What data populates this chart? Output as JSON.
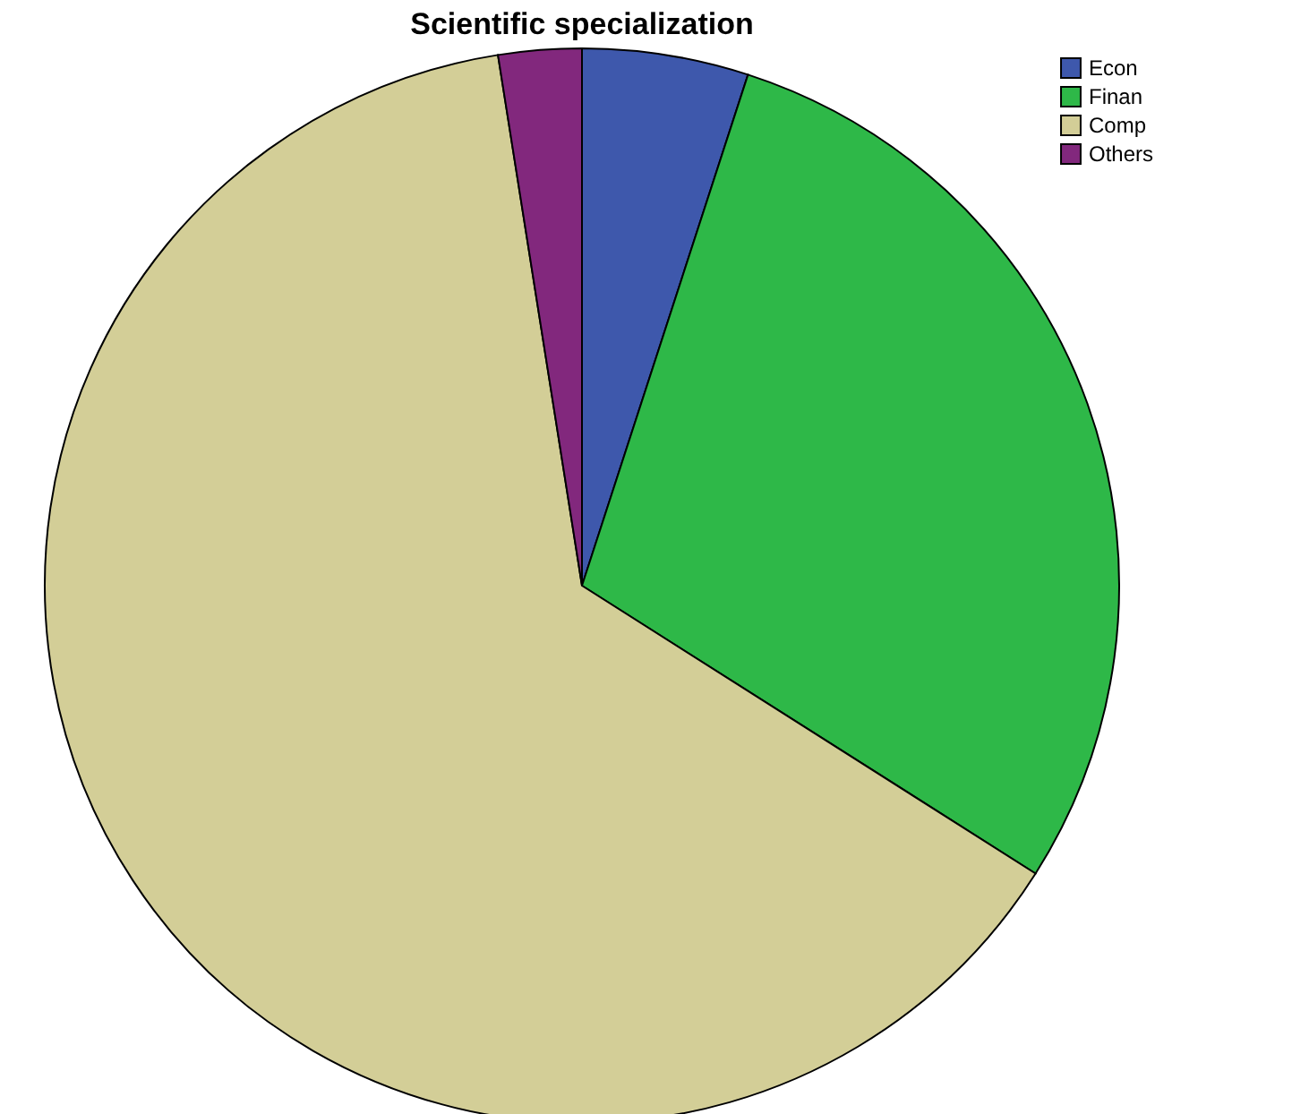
{
  "chart_data": {
    "type": "pie",
    "title": "Scientific specialization",
    "categories": [
      "Econ",
      "Finan",
      "Comp",
      "Others"
    ],
    "values": [
      5,
      29,
      63.5,
      2.5
    ],
    "colors": [
      "#3e58ac",
      "#2eb848",
      "#d3ce97",
      "#82287d"
    ],
    "legend": "top right"
  }
}
